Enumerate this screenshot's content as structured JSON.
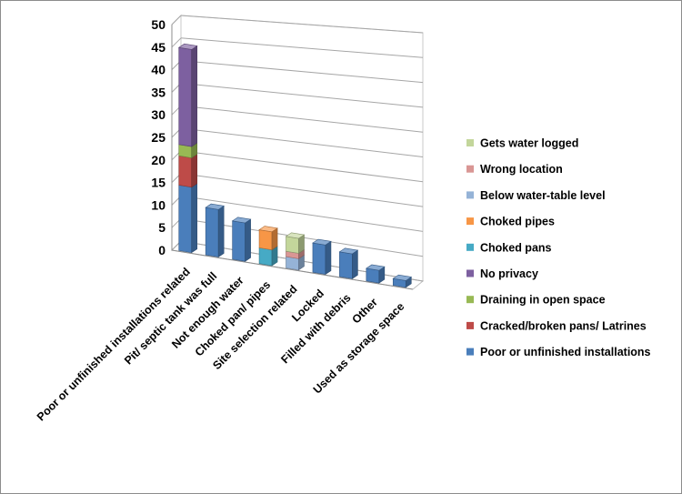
{
  "chart_data": {
    "type": "bar",
    "style": "3d-stacked-column",
    "title": "",
    "xlabel": "",
    "ylabel": "",
    "ylim": [
      0,
      50
    ],
    "yticks": [
      0,
      5,
      10,
      15,
      20,
      25,
      30,
      35,
      40,
      45,
      50
    ],
    "grid": true,
    "legend_position": "right",
    "categories": [
      "Poor or unfinished installations related",
      "Pit/ septic tank was full",
      "Not enough water",
      "Choked pan/ pipes",
      "Site selection related",
      "Locked",
      "Filled with debris",
      "Other",
      "Used as storage space"
    ],
    "series": [
      {
        "name": "Poor or unfinished installations",
        "color": "#4a7ebb",
        "values": [
          14.5,
          10.5,
          8.5,
          0,
          0,
          6.5,
          5.5,
          2.8,
          1.5
        ]
      },
      {
        "name": "Cracked/broken pans/ Latrines",
        "color": "#be4b48",
        "values": [
          6.5,
          0,
          0,
          0,
          0,
          0,
          0,
          0,
          0
        ]
      },
      {
        "name": "Draining in open space",
        "color": "#98b954",
        "values": [
          2.5,
          0,
          0,
          0,
          0,
          0,
          0,
          0,
          0
        ]
      },
      {
        "name": "No privacy",
        "color": "#7d60a0",
        "values": [
          21.5,
          0,
          0,
          0,
          0,
          0,
          0,
          0,
          0
        ]
      },
      {
        "name": "Choked pans",
        "color": "#46aac5",
        "values": [
          0,
          0,
          0,
          3.5,
          0,
          0,
          0,
          0,
          0
        ]
      },
      {
        "name": "Choked pipes",
        "color": "#f79646",
        "values": [
          0,
          0,
          0,
          4,
          0,
          0,
          0,
          0,
          0
        ]
      },
      {
        "name": "Below water-table level",
        "color": "#95b3d7",
        "values": [
          0,
          0,
          0,
          0,
          2.5,
          0,
          0,
          0,
          0
        ]
      },
      {
        "name": "Wrong location",
        "color": "#d99694",
        "values": [
          0,
          0,
          0,
          0,
          1.2,
          0,
          0,
          0,
          0
        ]
      },
      {
        "name": "Gets water logged",
        "color": "#c3d69b",
        "values": [
          0,
          0,
          0,
          0,
          3.3,
          0,
          0,
          0,
          0
        ]
      }
    ],
    "legend_order": [
      "Gets water logged",
      "Wrong location",
      "Below water-table level",
      "Choked pipes",
      "Choked pans",
      "No privacy",
      "Draining in open space",
      "Cracked/broken pans/ Latrines",
      "Poor or unfinished installations"
    ]
  }
}
